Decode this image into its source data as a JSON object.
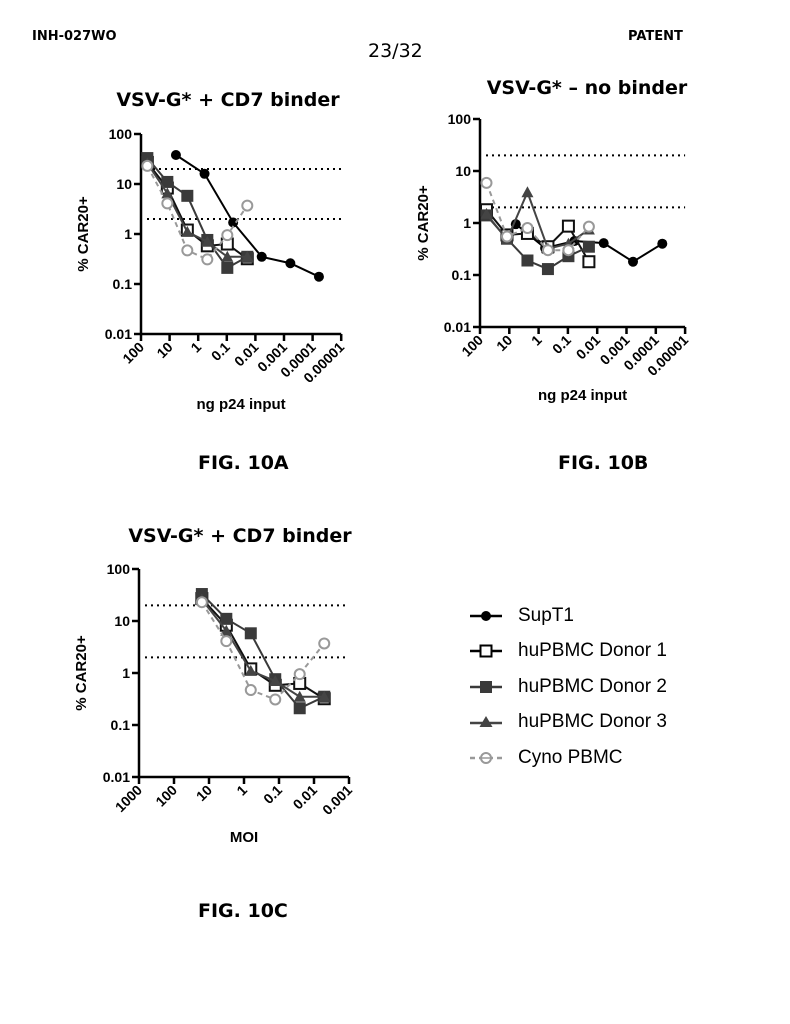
{
  "header": {
    "left": "INH-027WO",
    "right": "PATENT",
    "page": "23/32"
  },
  "captions": {
    "a": "FIG. 10A",
    "b": "FIG. 10B",
    "c": "FIG. 10C"
  },
  "legend": [
    {
      "name": "SupT1",
      "marker": "filled-circle",
      "color": "#000000",
      "dash": false
    },
    {
      "name": "huPBMC Donor 1",
      "marker": "open-square",
      "color": "#000000",
      "dash": false
    },
    {
      "name": "huPBMC Donor 2",
      "marker": "filled-square",
      "color": "#3a3a3a",
      "dash": false
    },
    {
      "name": "huPBMC Donor 3",
      "marker": "filled-triangle",
      "color": "#444444",
      "dash": false
    },
    {
      "name": "Cyno PBMC",
      "marker": "open-circle",
      "color": "#999999",
      "dash": true
    }
  ],
  "chart_data": [
    {
      "id": "fig10a",
      "type": "line",
      "title": "VSV-G* + CD7 binder",
      "xlabel": "ng p24 input",
      "ylabel": "% CAR20+",
      "xscale": "log-reversed",
      "yscale": "log",
      "xlim": [
        100,
        1e-05
      ],
      "ylim": [
        0.01,
        100
      ],
      "xticks": [
        "100",
        "10",
        "1",
        "0.1",
        "0.01",
        "0.001",
        "0.0001",
        "0.00001"
      ],
      "yticks": [
        "100",
        "10",
        "1",
        "0.1",
        "0.01"
      ],
      "reference_lines": [
        20,
        2
      ],
      "series": [
        {
          "name": "SupT1",
          "x": [
            6,
            0.6,
            0.06,
            0.006,
            0.0006,
            6e-05
          ],
          "values": [
            38,
            16,
            1.7,
            0.35,
            0.26,
            0.14
          ]
        },
        {
          "name": "huPBMC Donor 1",
          "x": [
            60,
            12,
            2.4,
            0.48,
            0.096,
            0.0192
          ],
          "values": [
            27,
            8.3,
            1.2,
            0.58,
            0.63,
            0.32
          ]
        },
        {
          "name": "huPBMC Donor 2",
          "x": [
            60,
            12,
            2.4,
            0.48,
            0.096,
            0.0192
          ],
          "values": [
            33,
            11,
            5.8,
            0.76,
            0.21,
            0.35
          ]
        },
        {
          "name": "huPBMC Donor 3",
          "x": [
            60,
            12,
            2.4,
            0.48,
            0.096,
            0.0192
          ],
          "values": [
            26,
            6.5,
            1.1,
            0.7,
            0.35,
            0.35
          ]
        },
        {
          "name": "Cyno PBMC",
          "x": [
            60,
            12,
            2.4,
            0.48,
            0.096,
            0.0192
          ],
          "values": [
            23,
            4.1,
            0.47,
            0.31,
            0.95,
            3.7
          ]
        }
      ]
    },
    {
      "id": "fig10b",
      "type": "line",
      "title": "VSV-G* – no binder",
      "xlabel": "ng p24 input",
      "ylabel": "% CAR20+",
      "xscale": "log-reversed",
      "yscale": "log",
      "xlim": [
        100,
        1e-05
      ],
      "ylim": [
        0.01,
        100
      ],
      "xticks": [
        "100",
        "10",
        "1",
        "0.1",
        "0.01",
        "0.001",
        "0.0001",
        "0.00001"
      ],
      "yticks": [
        "100",
        "10",
        "1",
        "0.1",
        "0.01"
      ],
      "reference_lines": [
        20,
        2
      ],
      "series": [
        {
          "name": "SupT1",
          "x": [
            6,
            0.6,
            0.06,
            0.006,
            0.0006,
            6e-05
          ],
          "values": [
            0.95,
            0.33,
            0.45,
            0.41,
            0.18,
            0.4
          ]
        },
        {
          "name": "huPBMC Donor 1",
          "x": [
            60,
            12,
            2.4,
            0.48,
            0.096,
            0.0192
          ],
          "values": [
            1.8,
            0.59,
            0.63,
            0.35,
            0.87,
            0.18
          ]
        },
        {
          "name": "huPBMC Donor 2",
          "x": [
            60,
            12,
            2.4,
            0.48,
            0.096,
            0.0192
          ],
          "values": [
            1.4,
            0.5,
            0.19,
            0.13,
            0.23,
            0.35
          ]
        },
        {
          "name": "huPBMC Donor 3",
          "x": [
            60,
            12,
            2.4,
            0.48,
            0.096,
            0.0192
          ],
          "values": [
            1.5,
            0.48,
            3.9,
            0.32,
            0.4,
            0.75
          ]
        },
        {
          "name": "Cyno PBMC",
          "x": [
            60,
            12,
            2.4,
            0.48,
            0.096,
            0.0192
          ],
          "values": [
            5.9,
            0.55,
            0.8,
            0.3,
            0.3,
            0.85
          ]
        }
      ]
    },
    {
      "id": "fig10c",
      "type": "line",
      "title": "VSV-G* + CD7 binder",
      "xlabel": "MOI",
      "ylabel": "% CAR20+",
      "xscale": "log-reversed",
      "yscale": "log",
      "xlim": [
        1000,
        0.001
      ],
      "ylim": [
        0.01,
        100
      ],
      "xticks": [
        "1000",
        "100",
        "10",
        "1",
        "0.1",
        "0.01",
        "0.001"
      ],
      "yticks": [
        "100",
        "10",
        "1",
        "0.1",
        "0.01"
      ],
      "reference_lines": [
        20,
        2
      ],
      "series": [
        {
          "name": "huPBMC Donor 1",
          "x": [
            16,
            3.2,
            0.64,
            0.128,
            0.0256,
            0.0051
          ],
          "values": [
            27,
            8.3,
            1.2,
            0.58,
            0.63,
            0.32
          ]
        },
        {
          "name": "huPBMC Donor 2",
          "x": [
            16,
            3.2,
            0.64,
            0.128,
            0.0256,
            0.0051
          ],
          "values": [
            33,
            11,
            5.8,
            0.76,
            0.21,
            0.35
          ]
        },
        {
          "name": "huPBMC Donor 3",
          "x": [
            16,
            3.2,
            0.64,
            0.128,
            0.0256,
            0.0051
          ],
          "values": [
            26,
            6.5,
            1.1,
            0.7,
            0.35,
            0.35
          ]
        },
        {
          "name": "Cyno PBMC",
          "x": [
            16,
            3.2,
            0.64,
            0.128,
            0.0256,
            0.0051
          ],
          "values": [
            23,
            4.1,
            0.47,
            0.31,
            0.95,
            3.7
          ]
        }
      ]
    }
  ]
}
